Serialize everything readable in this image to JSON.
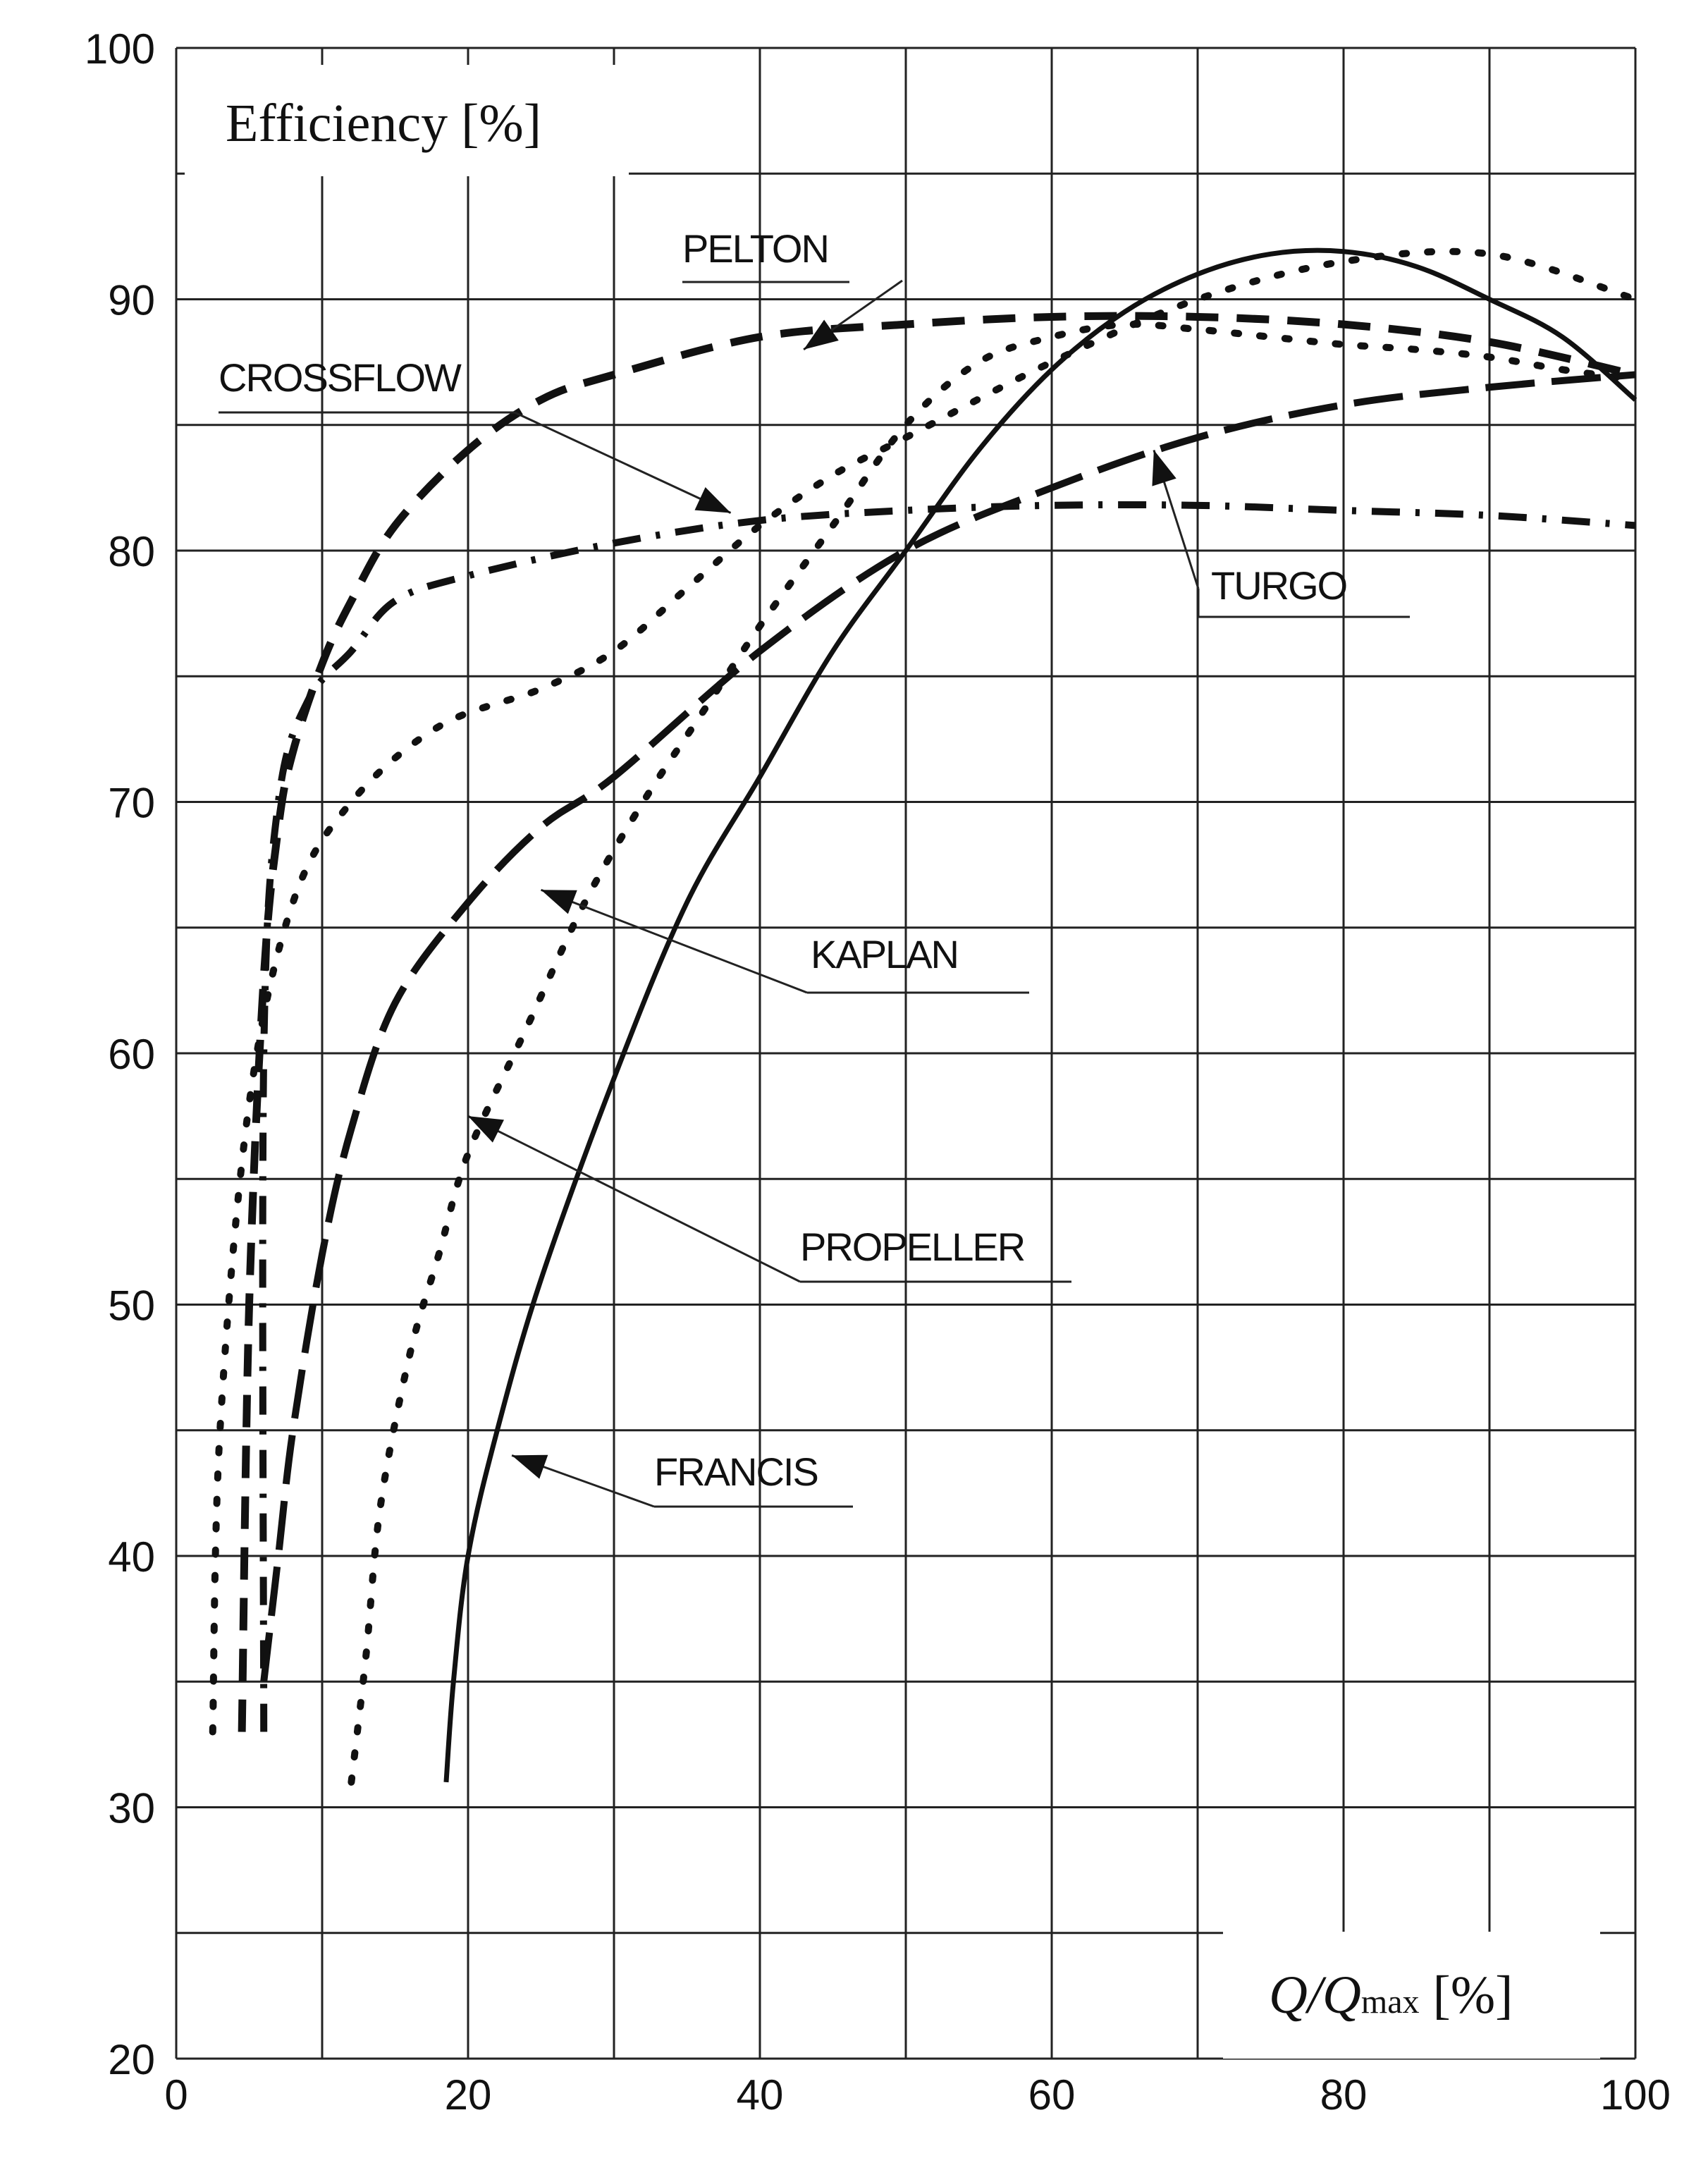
{
  "chart_data": {
    "type": "line",
    "xlabel": "Q/Qmax [%]",
    "xlabel_main": "Q/Q",
    "xlabel_sub": "max",
    "xlabel_tail": " [%]",
    "ylabel": "Efficiency [%]",
    "xlim": [
      0,
      100
    ],
    "ylim": [
      20,
      100
    ],
    "x_ticks": [
      "0",
      "20",
      "40",
      "60",
      "80",
      "100"
    ],
    "y_ticks": [
      "20",
      "30",
      "40",
      "50",
      "60",
      "70",
      "80",
      "90",
      "100"
    ],
    "grid": true,
    "series": [
      {
        "name": "PELTON",
        "style": "dashed",
        "x": [
          4.5,
          5,
          6,
          7,
          8,
          10,
          12,
          15,
          20,
          25,
          30,
          40,
          50,
          60,
          70,
          80,
          90,
          100
        ],
        "y": [
          33,
          50,
          63,
          69,
          72,
          75.5,
          78,
          81,
          84,
          86,
          87,
          88.5,
          89,
          89.3,
          89.3,
          89,
          88.3,
          87
        ]
      },
      {
        "name": "CROSSFLOW",
        "style": "dash-dot",
        "x": [
          6,
          6,
          7,
          9,
          12,
          15,
          20,
          30,
          40,
          50,
          60,
          70,
          80,
          90,
          100
        ],
        "y": [
          33,
          60,
          70,
          74,
          76,
          78,
          79,
          80.3,
          81.2,
          81.6,
          81.8,
          81.8,
          81.6,
          81.4,
          81
        ]
      },
      {
        "name": "TURGO",
        "style": "long-dash",
        "x": [
          6,
          7,
          8,
          10,
          12,
          15,
          20,
          25,
          30,
          40,
          50,
          60,
          70,
          80,
          90,
          100
        ],
        "y": [
          35,
          40,
          45,
          52,
          57,
          62,
          66,
          69,
          71,
          76,
          80,
          82.5,
          84.5,
          85.8,
          86.5,
          87
        ]
      },
      {
        "name": "KAPLAN",
        "style": "dotted",
        "x": [
          2.5,
          3,
          5,
          8,
          12,
          18,
          25,
          30,
          35,
          40,
          45,
          50,
          60,
          70,
          80,
          90,
          100
        ],
        "y": [
          33,
          45,
          58,
          66,
          70,
          73,
          74.5,
          76,
          78.5,
          81,
          83,
          84.5,
          87.5,
          90,
          91.5,
          91.8,
          90
        ]
      },
      {
        "name": "PROPELLER",
        "style": "dotted",
        "x": [
          12,
          13,
          14,
          16,
          18,
          20,
          24,
          28,
          32,
          36,
          40,
          45,
          50,
          55,
          60,
          65,
          70,
          75,
          80,
          85,
          90,
          95,
          100
        ],
        "y": [
          31,
          36,
          42,
          48,
          52,
          56,
          61,
          66,
          70,
          73.5,
          77,
          81,
          85,
          87.5,
          88.5,
          89,
          88.8,
          88.5,
          88.2,
          88,
          87.7,
          87.2,
          86.8
        ]
      },
      {
        "name": "FRANCIS",
        "style": "solid",
        "x": [
          18.5,
          19,
          20,
          22,
          25,
          30,
          35,
          40,
          45,
          50,
          55,
          60,
          65,
          70,
          75,
          80,
          85,
          90,
          95,
          100
        ],
        "y": [
          31,
          35,
          40,
          45,
          51,
          59,
          66,
          71,
          76,
          80,
          84,
          87.2,
          89.5,
          91,
          91.8,
          91.9,
          91.3,
          90,
          88.5,
          86
        ]
      }
    ],
    "annotations": [
      {
        "text": "PELTON",
        "points_to": [
          43,
          88
        ]
      },
      {
        "text": "CROSSFLOW",
        "points_to": [
          38,
          81.5
        ]
      },
      {
        "text": "TURGO",
        "points_to": [
          67,
          84
        ]
      },
      {
        "text": "KAPLAN",
        "points_to": [
          25,
          66.5
        ]
      },
      {
        "text": "PROPELLER",
        "points_to": [
          20,
          57.5
        ]
      },
      {
        "text": "FRANCIS",
        "points_to": [
          23,
          44
        ]
      }
    ]
  }
}
